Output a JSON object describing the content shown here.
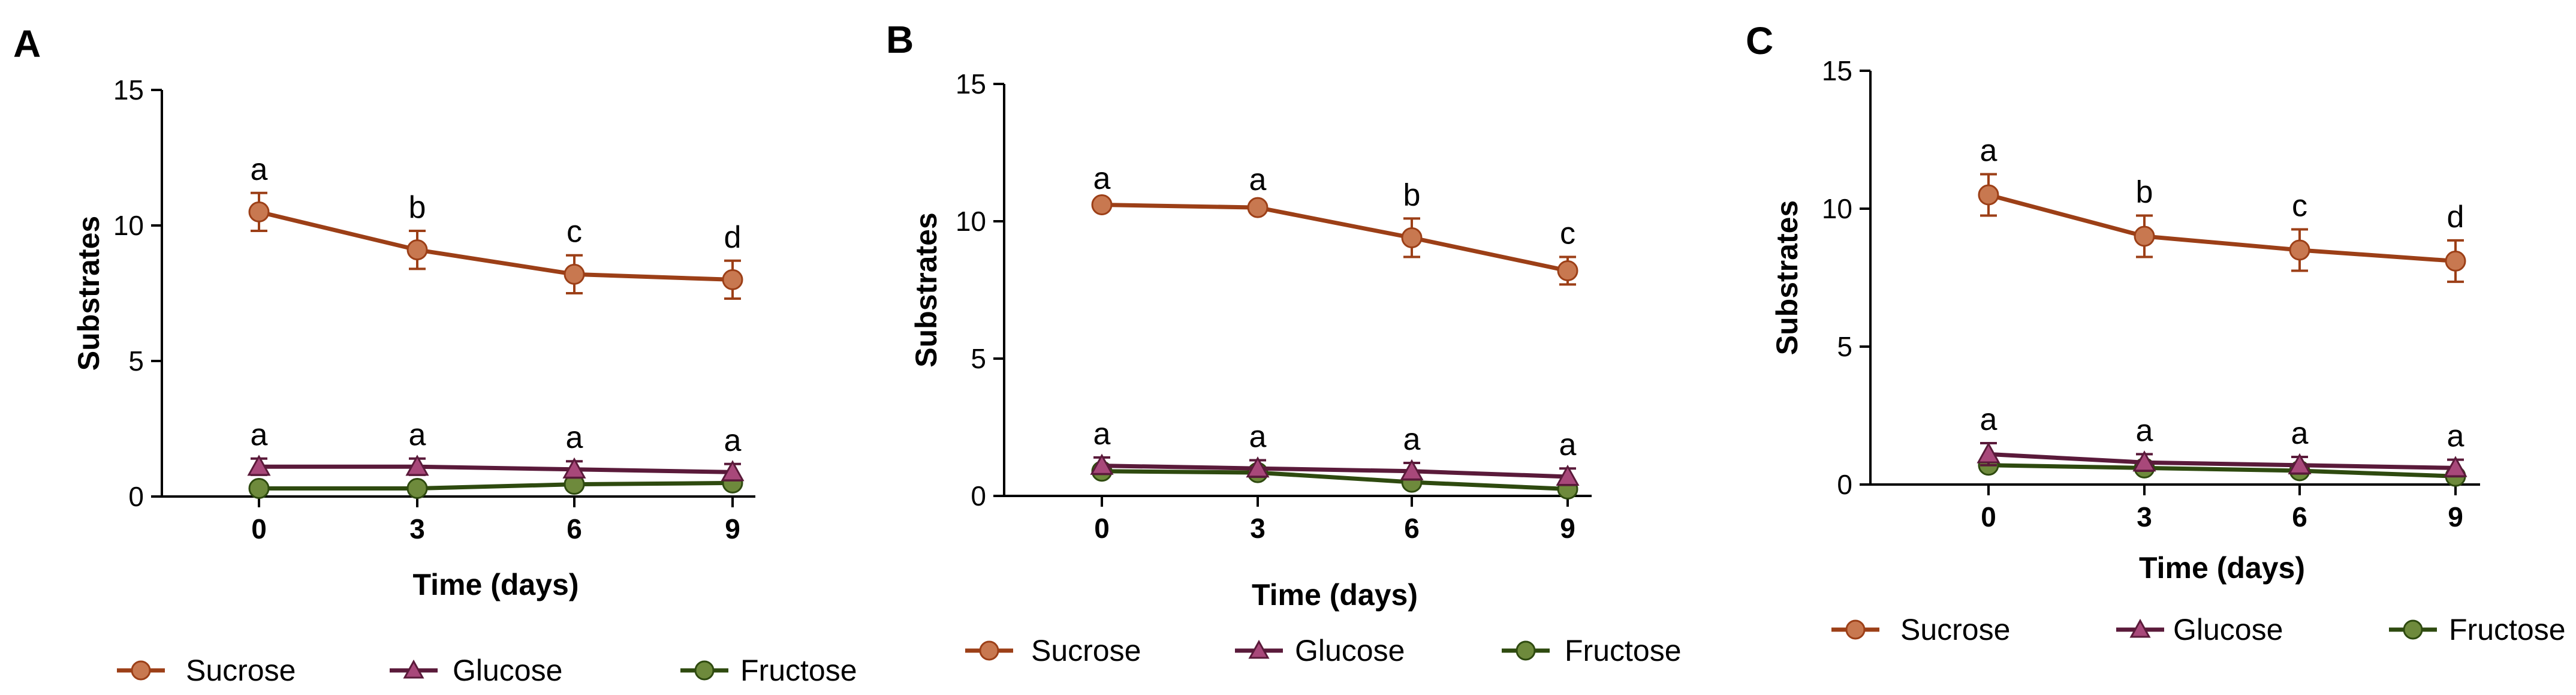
{
  "colors": {
    "Sucrose": "#9c3f17",
    "Sucrose_marker": "#c87850",
    "Glucose": "#5a1a3a",
    "Glucose_marker": "#a8487a",
    "Fructose": "#2e4a0f",
    "Fructose_marker": "#6e8a3c"
  },
  "chart_data": [
    {
      "panel": "A",
      "type": "line",
      "xlabel": "Time (days)",
      "ylabel": "Substrates",
      "x": [
        0,
        3,
        6,
        9
      ],
      "xticks": [
        "0",
        "3",
        "6",
        "9"
      ],
      "yticks": [
        "0",
        "5",
        "10",
        "15"
      ],
      "ylim": [
        0,
        15
      ],
      "grid": false,
      "legend": "bottom",
      "series": [
        {
          "name": "Sucrose",
          "marker": "circle",
          "values": [
            10.5,
            9.1,
            8.2,
            8.0
          ],
          "errors": [
            0.7,
            0.7,
            0.7,
            0.7
          ],
          "labels": [
            "a",
            "b",
            "c",
            "d"
          ]
        },
        {
          "name": "Glucose",
          "marker": "triangle",
          "values": [
            1.1,
            1.1,
            1.0,
            0.9
          ],
          "errors": [
            0.3,
            0.3,
            0.3,
            0.3
          ],
          "labels": [
            "a",
            "a",
            "a",
            "a"
          ]
        },
        {
          "name": "Fructose",
          "marker": "circle",
          "values": [
            0.3,
            0.3,
            0.45,
            0.5
          ],
          "errors": [
            0.1,
            0.1,
            0.1,
            0.1
          ],
          "labels": []
        }
      ]
    },
    {
      "panel": "B",
      "type": "line",
      "xlabel": "Time (days)",
      "ylabel": "Substrates",
      "x": [
        0,
        3,
        6,
        9
      ],
      "xticks": [
        "0",
        "3",
        "6",
        "9"
      ],
      "yticks": [
        "0",
        "5",
        "10",
        "15"
      ],
      "ylim": [
        0,
        15
      ],
      "grid": false,
      "legend": "bottom",
      "series": [
        {
          "name": "Sucrose",
          "marker": "circle",
          "values": [
            10.6,
            10.5,
            9.4,
            8.2
          ],
          "errors": [
            0.1,
            0.15,
            0.7,
            0.5
          ],
          "labels": [
            "a",
            "a",
            "b",
            "c"
          ]
        },
        {
          "name": "Glucose",
          "marker": "triangle",
          "values": [
            1.1,
            1.0,
            0.9,
            0.7
          ],
          "errors": [
            0.3,
            0.3,
            0.3,
            0.3
          ],
          "labels": [
            "a",
            "a",
            "a",
            "a"
          ]
        },
        {
          "name": "Fructose",
          "marker": "circle",
          "values": [
            0.9,
            0.85,
            0.5,
            0.25
          ],
          "errors": [
            0.1,
            0.1,
            0.1,
            0.1
          ],
          "labels": []
        }
      ]
    },
    {
      "panel": "C",
      "type": "line",
      "xlabel": "Time (days)",
      "ylabel": "Substrates",
      "x": [
        0,
        3,
        6,
        9
      ],
      "xticks": [
        "0",
        "3",
        "6",
        "9"
      ],
      "yticks": [
        "0",
        "5",
        "10",
        "15"
      ],
      "ylim": [
        0,
        15
      ],
      "grid": false,
      "legend": "bottom",
      "series": [
        {
          "name": "Sucrose",
          "marker": "circle",
          "values": [
            10.5,
            9.0,
            8.5,
            8.1
          ],
          "errors": [
            0.75,
            0.75,
            0.75,
            0.75
          ],
          "labels": [
            "a",
            "b",
            "c",
            "d"
          ]
        },
        {
          "name": "Glucose",
          "marker": "triangle",
          "values": [
            1.1,
            0.8,
            0.7,
            0.6
          ],
          "errors": [
            0.4,
            0.3,
            0.3,
            0.3
          ],
          "labels": [
            "a",
            "a",
            "a",
            "a"
          ]
        },
        {
          "name": "Fructose",
          "marker": "circle",
          "values": [
            0.7,
            0.6,
            0.5,
            0.3
          ],
          "errors": [
            0.1,
            0.1,
            0.1,
            0.1
          ],
          "labels": []
        }
      ]
    }
  ]
}
